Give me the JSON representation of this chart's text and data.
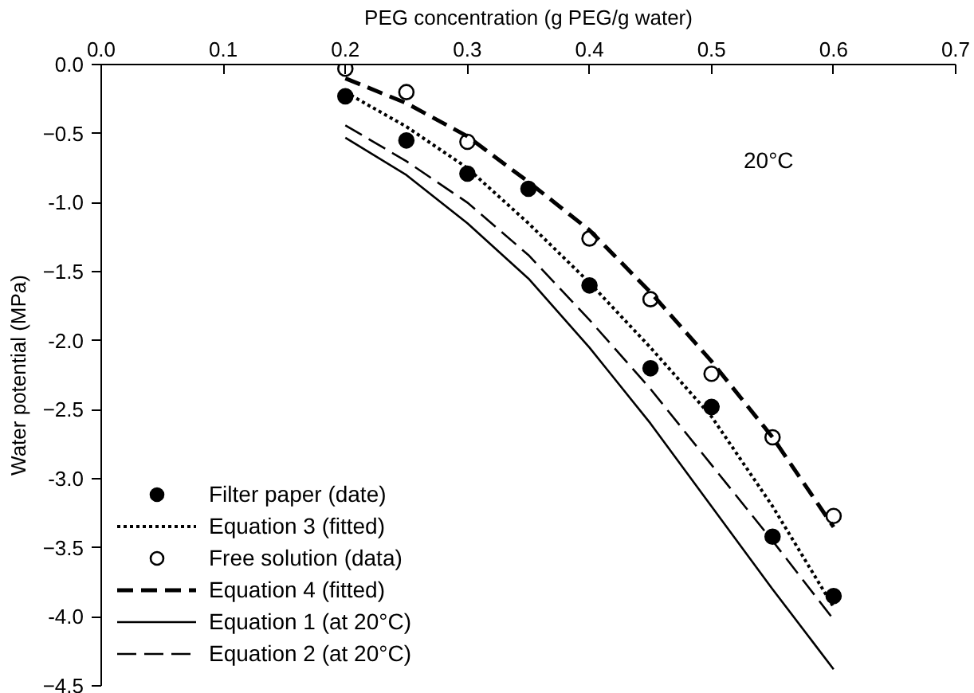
{
  "chart_data": {
    "type": "line",
    "xlabel": "PEG concentration (g PEG/g water)",
    "ylabel": "Water potential (MPa)",
    "xlim": [
      0.0,
      0.7
    ],
    "ylim": [
      -4.5,
      0.0
    ],
    "xticks": [
      {
        "value": 0.0,
        "label": "0.0"
      },
      0.1,
      0.2,
      0.3,
      0.4,
      0.5,
      0.6,
      0.7
    ],
    "yticks": [
      {
        "value": 0.0,
        "label": "0.0"
      },
      -0.5,
      {
        "value": -1.0,
        "label": "-1.0"
      },
      -1.5,
      {
        "value": -2.0,
        "label": "-2.0"
      },
      -2.5,
      {
        "value": -3.0,
        "label": "-3.0"
      },
      -3.5,
      {
        "value": -4.0,
        "label": "-4.0"
      },
      -4.5
    ],
    "grid": false,
    "legend": "bottom left",
    "annotations": [
      "20°C"
    ],
    "series": [
      {
        "name": "Filter paper (date)",
        "type": "scatter",
        "marker": "circle",
        "color": "#000000",
        "x": [
          0.2,
          0.25,
          0.3,
          0.35,
          0.4,
          0.45,
          0.5,
          0.55,
          0.6
        ],
        "values": [
          -0.23,
          -0.55,
          -0.79,
          -0.9,
          -1.6,
          -2.2,
          -2.48,
          -3.42,
          -3.85
        ]
      },
      {
        "name": "Equation 3 (fitted)",
        "line_style": "dotted",
        "color": "#000000",
        "x": [
          0.2,
          0.25,
          0.3,
          0.35,
          0.4,
          0.45,
          0.5,
          0.55,
          0.6
        ],
        "values": [
          -0.2,
          -0.45,
          -0.75,
          -1.15,
          -1.58,
          -2.05,
          -2.55,
          -3.2,
          -3.93
        ]
      },
      {
        "name": "Free solution (data)",
        "type": "scatter",
        "marker": "circle",
        "color": "#000000",
        "x": [
          0.2,
          0.25,
          0.3,
          0.4,
          0.45,
          0.5,
          0.55,
          0.6
        ],
        "values": [
          -0.03,
          -0.2,
          -0.56,
          -1.26,
          -1.7,
          -2.24,
          -2.7,
          -3.27
        ]
      },
      {
        "name": "Equation 4 (fitted)",
        "line_style": "dashed",
        "color": "#000000",
        "x": [
          0.2,
          0.25,
          0.3,
          0.35,
          0.4,
          0.45,
          0.5,
          0.55,
          0.6
        ],
        "values": [
          -0.1,
          -0.28,
          -0.52,
          -0.85,
          -1.2,
          -1.65,
          -2.15,
          -2.7,
          -3.35
        ]
      },
      {
        "name": "Equation 1 (at 20°C)",
        "line_style": "solid",
        "color": "#000000",
        "x": [
          0.2,
          0.25,
          0.3,
          0.35,
          0.4,
          0.45,
          0.5,
          0.55,
          0.6
        ],
        "values": [
          -0.53,
          -0.8,
          -1.15,
          -1.55,
          -2.05,
          -2.6,
          -3.2,
          -3.8,
          -4.38
        ]
      },
      {
        "name": "Equation 2 (at 20°C)",
        "line_style": "dashed",
        "color": "#000000",
        "x": [
          0.2,
          0.25,
          0.3,
          0.35,
          0.4,
          0.45,
          0.5,
          0.55,
          0.6
        ],
        "values": [
          -0.44,
          -0.7,
          -1.0,
          -1.38,
          -1.85,
          -2.35,
          -2.9,
          -3.45,
          -4.02
        ]
      }
    ]
  }
}
